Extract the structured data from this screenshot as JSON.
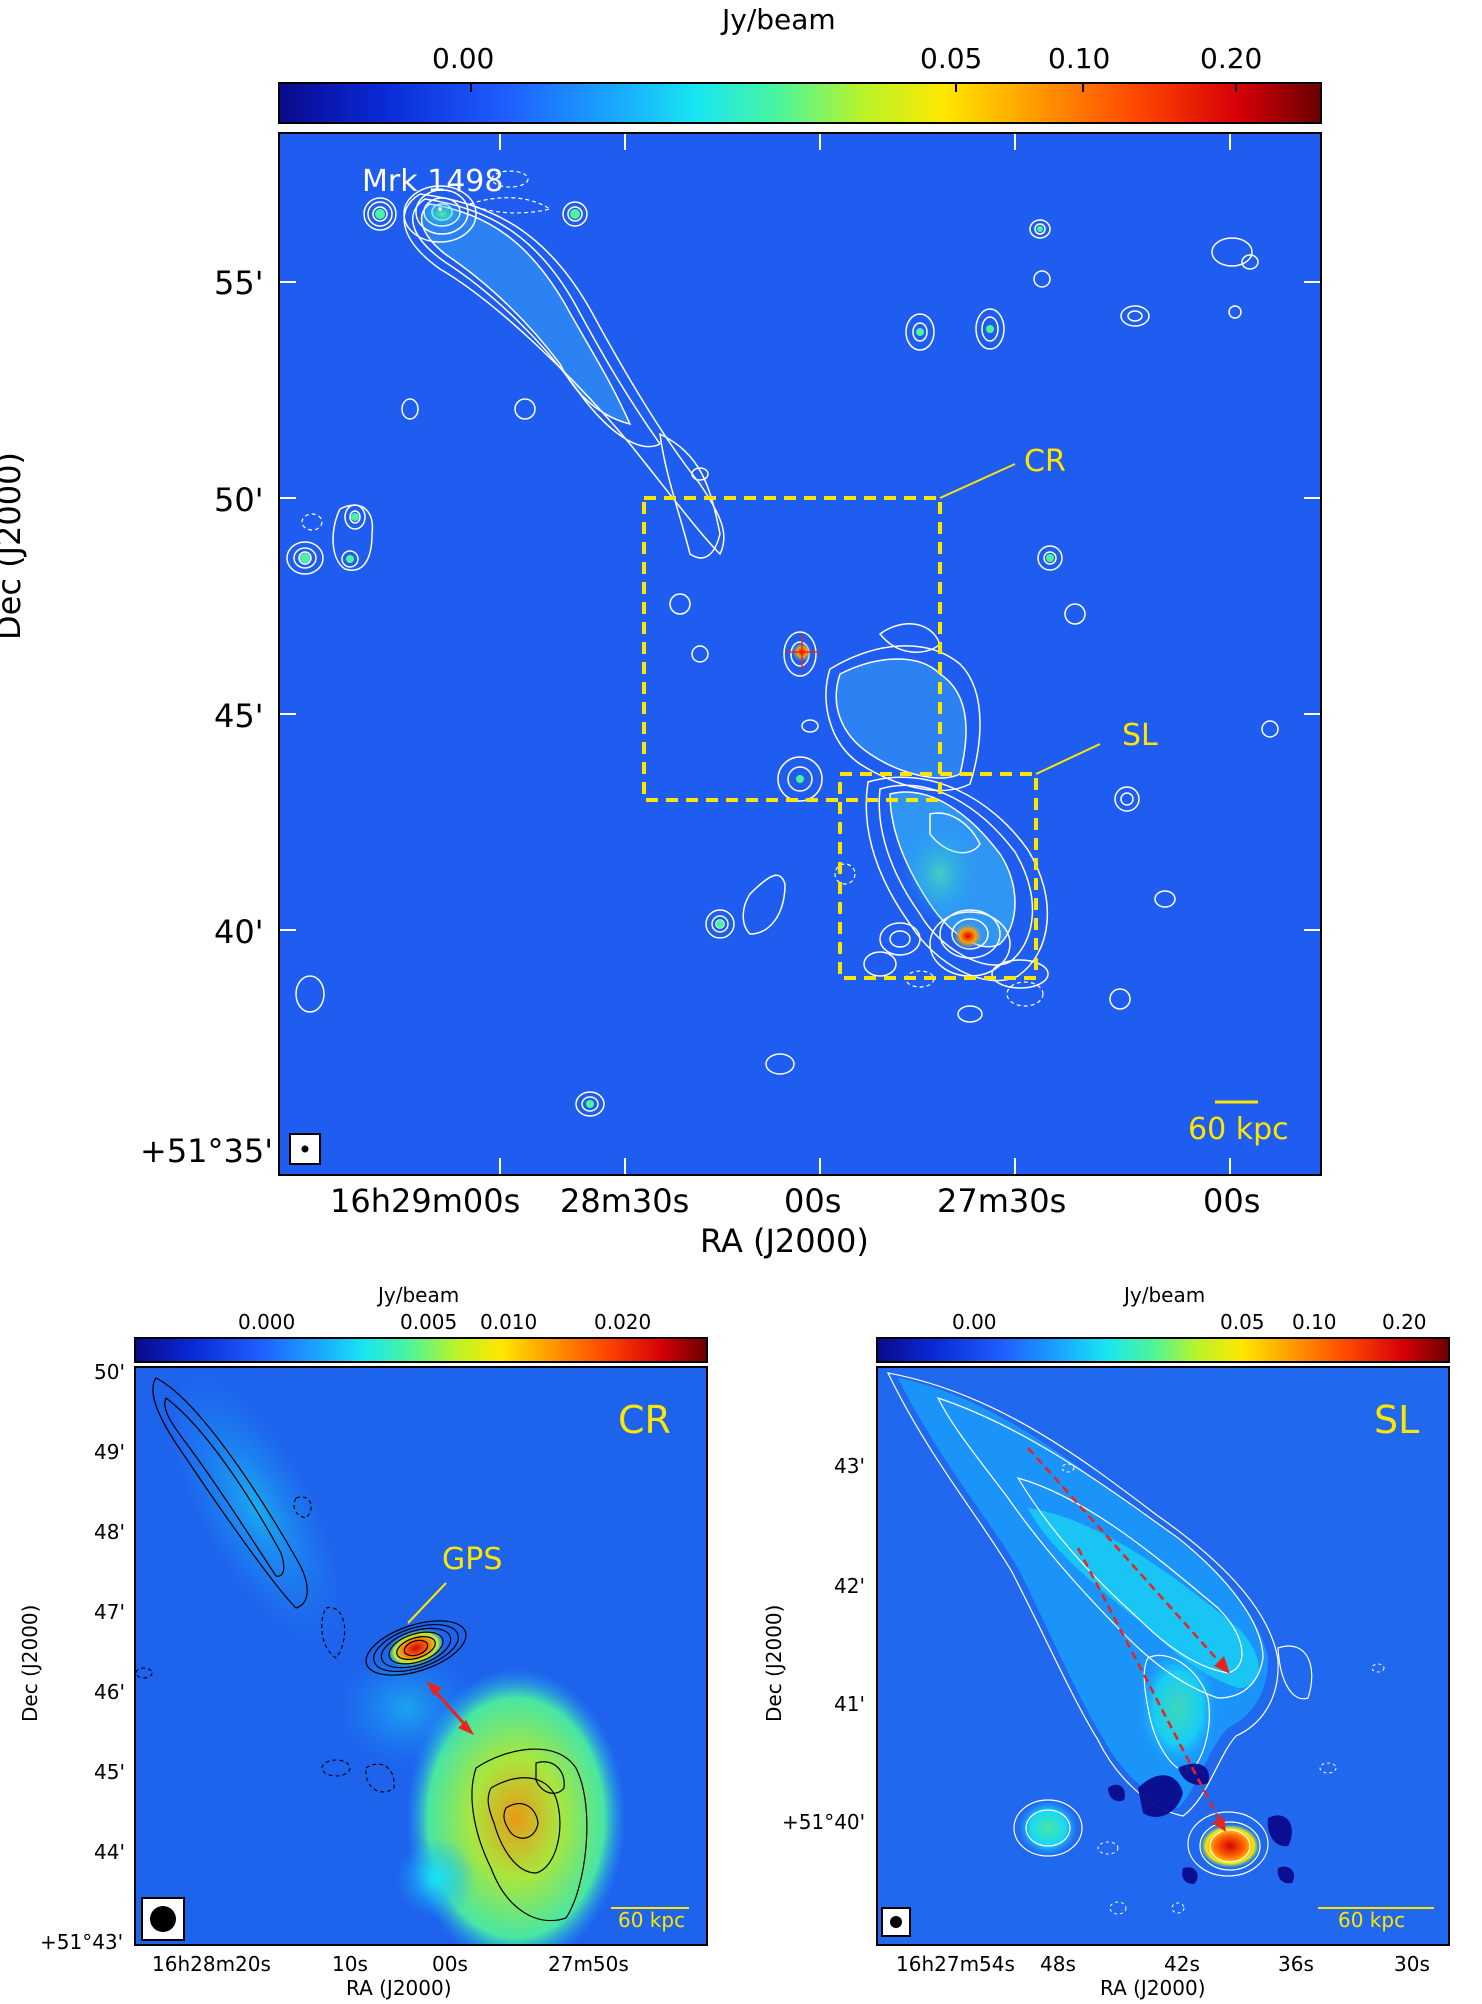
{
  "main": {
    "colorbar": {
      "label": "Jy/beam",
      "ticks": [
        "0.00",
        "0.05",
        "0.10",
        "0.20"
      ]
    },
    "source_label": "Mrk 1498",
    "boxes": {
      "cr": "CR",
      "sl": "SL"
    },
    "scalebar": "60 kpc",
    "dec_ticks": [
      "55'",
      "50'",
      "45'",
      "40'",
      "+51°35'"
    ],
    "ra_ticks": [
      "16h29m00s",
      "28m30s",
      "00s",
      "27m30s",
      "00s"
    ],
    "xlabel": "RA (J2000)",
    "ylabel": "Dec (J2000)"
  },
  "cr": {
    "colorbar": {
      "label": "Jy/beam",
      "ticks": [
        "0.000",
        "0.005",
        "0.010",
        "0.020"
      ]
    },
    "title": "CR",
    "annotation": "GPS",
    "scalebar": "60 kpc",
    "dec_ticks": [
      "50'",
      "49'",
      "48'",
      "47'",
      "46'",
      "45'",
      "44'",
      "+51°43'"
    ],
    "ra_ticks": [
      "16h28m20s",
      "10s",
      "00s",
      "27m50s"
    ],
    "xlabel": "RA (J2000)",
    "ylabel": "Dec (J2000)"
  },
  "sl": {
    "colorbar": {
      "label": "Jy/beam",
      "ticks": [
        "0.00",
        "0.05",
        "0.10",
        "0.20"
      ]
    },
    "title": "SL",
    "scalebar": "60 kpc",
    "dec_ticks": [
      "43'",
      "42'",
      "41'",
      "+51°40'"
    ],
    "ra_ticks": [
      "16h27m54s",
      "48s",
      "42s",
      "36s",
      "30s"
    ],
    "xlabel": "RA (J2000)",
    "ylabel": "Dec (J2000)"
  },
  "colors": {
    "background": "#1f5cf0",
    "annotation": "#ffe600",
    "arrow": "#e8241c",
    "contour": "#ffffff"
  }
}
